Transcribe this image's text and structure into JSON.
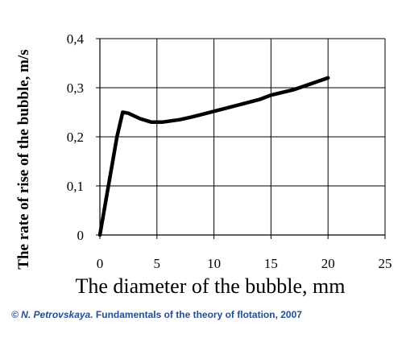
{
  "chart_data": {
    "type": "line",
    "xlabel": "The diameter of the bubble, mm",
    "ylabel": "The rate of rise of the bubble, m/s",
    "xlim": [
      0,
      25
    ],
    "ylim": [
      0,
      0.4
    ],
    "x_ticks": [
      "0",
      "5",
      "10",
      "15",
      "20",
      "25"
    ],
    "y_ticks": [
      "0",
      "0,1",
      "0,2",
      "0,3",
      "0,4"
    ],
    "grid": true,
    "series": [
      {
        "color": "#000000",
        "points": [
          [
            0,
            0
          ],
          [
            1.5,
            0.2
          ],
          [
            2.0,
            0.25
          ],
          [
            2.5,
            0.248
          ],
          [
            3.5,
            0.237
          ],
          [
            4.5,
            0.23
          ],
          [
            5.5,
            0.23
          ],
          [
            7,
            0.235
          ],
          [
            8,
            0.24
          ],
          [
            10,
            0.252
          ],
          [
            12,
            0.264
          ],
          [
            14,
            0.276
          ],
          [
            15,
            0.285
          ],
          [
            17,
            0.296
          ],
          [
            18.5,
            0.308
          ],
          [
            20,
            0.32
          ]
        ]
      }
    ]
  },
  "credit": {
    "author": "© N. Petrovskaya.",
    "text": "Fundamentals of the theory of flotation, 2007",
    "color": "#1f4e9a"
  }
}
